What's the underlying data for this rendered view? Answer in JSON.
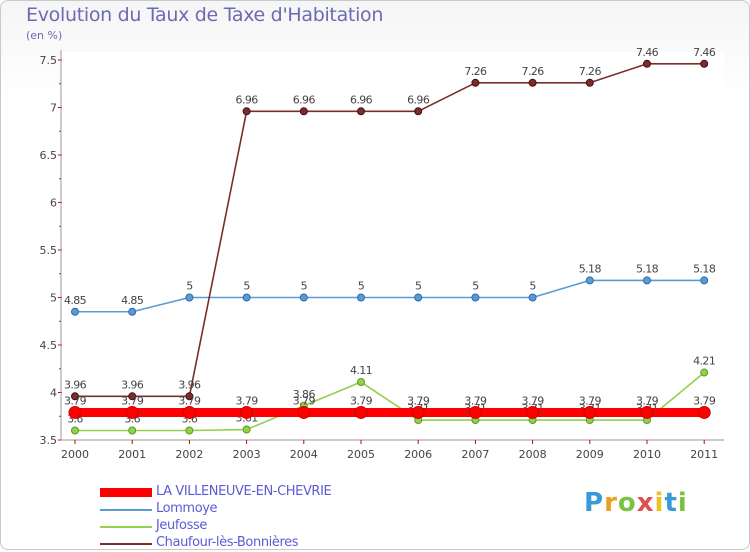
{
  "title": "Evolution du Taux de Taxe d'Habitation",
  "unit": "(en %)",
  "brand": "Proxiti",
  "chart_data": {
    "type": "line",
    "x": [
      "2000",
      "2001",
      "2002",
      "2003",
      "2004",
      "2005",
      "2006",
      "2007",
      "2008",
      "2009",
      "2010",
      "2011"
    ],
    "ylim": [
      3.5,
      7.5
    ],
    "yticks": [
      "3.5",
      "4",
      "4.5",
      "5",
      "5.5",
      "6",
      "6.5",
      "7",
      "7.5"
    ],
    "series": [
      {
        "name": "LA VILLENEUVE-EN-CHEVRIE",
        "color": "#ff0000",
        "values": [
          3.79,
          3.79,
          3.79,
          3.79,
          3.79,
          3.79,
          3.79,
          3.79,
          3.79,
          3.79,
          3.79,
          3.79
        ]
      },
      {
        "name": "Lommoye",
        "color": "#5b9bd5",
        "values": [
          4.85,
          4.85,
          5,
          5,
          5,
          5,
          5,
          5,
          5,
          5.18,
          5.18,
          5.18
        ]
      },
      {
        "name": "Jeufosse",
        "color": "#92d050",
        "values": [
          3.6,
          3.6,
          3.6,
          3.61,
          3.86,
          4.11,
          3.71,
          3.71,
          3.71,
          3.71,
          3.71,
          4.21
        ]
      },
      {
        "name": "Chaufour-lès-Bonnières",
        "color": "#7b2c2c",
        "values": [
          3.96,
          3.96,
          3.96,
          6.96,
          6.96,
          6.96,
          6.96,
          7.26,
          7.26,
          7.26,
          7.46,
          7.46
        ]
      }
    ]
  }
}
